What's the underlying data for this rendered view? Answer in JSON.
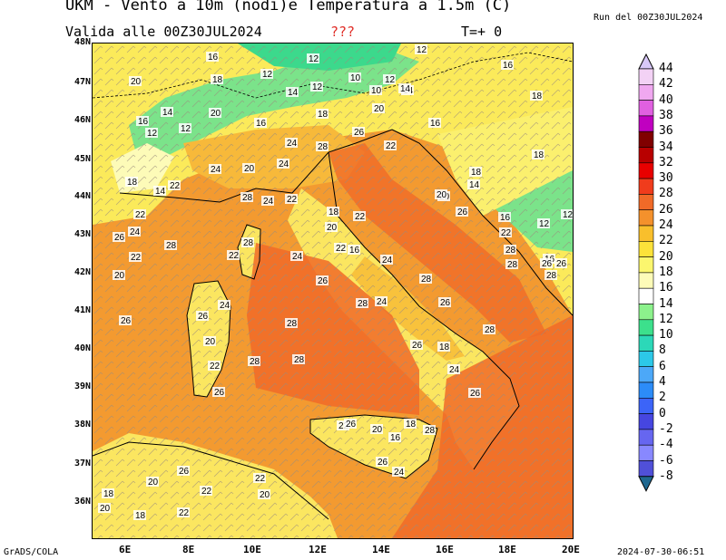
{
  "header": {
    "title": "UKM - Vento a 10m (nodi)e Temperatura a 1.5m (C)",
    "valid": "Valida alle 00Z30JUL2024",
    "unknown": "???",
    "step": "T=+ 0",
    "run": "Run del 00Z30JUL2024"
  },
  "footer": {
    "left": "GrADS/COLA",
    "right": "2024-07-30-06:51"
  },
  "axes": {
    "lat": [
      "48N",
      "47N",
      "46N",
      "45N",
      "44N",
      "43N",
      "42N",
      "41N",
      "40N",
      "39N",
      "38N",
      "37N",
      "36N"
    ],
    "lon": [
      "6E",
      "8E",
      "10E",
      "12E",
      "14E",
      "16E",
      "18E",
      "20E"
    ]
  },
  "colorbar": {
    "labels": [
      "44",
      "42",
      "40",
      "38",
      "36",
      "34",
      "32",
      "30",
      "28",
      "26",
      "24",
      "22",
      "20",
      "18",
      "16",
      "14",
      "12",
      "10",
      "8",
      "6",
      "4",
      "2",
      "0",
      "-2",
      "-4",
      "-6",
      "-8"
    ],
    "colors": [
      "#f3d2f5",
      "#f0a8f0",
      "#e060e0",
      "#c000c0",
      "#800000",
      "#b80000",
      "#e80000",
      "#f03c1c",
      "#f06a28",
      "#f4912c",
      "#f9bf2c",
      "#fce23a",
      "#fbf66e",
      "#fdfbb8",
      "#ffffff",
      "#8cf28c",
      "#3ce08c",
      "#2cd8b8",
      "#2cc8e8",
      "#4ca8f8",
      "#2c8cf8",
      "#3c64f8",
      "#4646e0",
      "#6666f0",
      "#8888ff",
      "#5050d8"
    ],
    "top_color": "#d8c8f8",
    "bottom_color": "#1f6890"
  },
  "values": {
    "v01": "16",
    "v02": "12",
    "v03": "12",
    "v04": "20",
    "v05": "18",
    "v06": "12",
    "v07": "14",
    "v08": "12",
    "v09": "10",
    "v10": "12",
    "v11": "10",
    "v12": "14",
    "v13": "16",
    "v14": "18",
    "v15": "16",
    "v16": "14",
    "v17": "12",
    "v18": "20",
    "v19": "16",
    "v20": "18",
    "v21": "20",
    "v22": "12",
    "v23": "16",
    "v24": "18",
    "v25": "24",
    "v26": "28",
    "v27": "26",
    "v28": "22",
    "v29": "18",
    "v30": "24",
    "v31": "20",
    "v32": "24",
    "v33": "18",
    "v34": "14",
    "v35": "22",
    "v36": "28",
    "v37": "24",
    "v38": "22",
    "v39": "20",
    "v40": "22",
    "v41": "26",
    "v42": "24",
    "v43": "28",
    "v44": "28",
    "v45": "22",
    "v46": "18",
    "v47": "22",
    "v48": "20",
    "v49": "22",
    "v50": "16",
    "v51": "24",
    "v52": "24",
    "v53": "26",
    "v54": "28",
    "v55": "28",
    "v56": "24",
    "v57": "28",
    "v58": "26",
    "v59": "26",
    "v60": "28",
    "v61": "28",
    "v62": "26",
    "v63": "24",
    "v64": "28",
    "v65": "26",
    "v66": "20",
    "v67": "22",
    "v68": "26",
    "v69": "28",
    "v70": "18",
    "v71": "24",
    "v72": "26",
    "v73": "28",
    "v74": "22",
    "v75": "26",
    "v76": "20",
    "v77": "16",
    "v78": "18",
    "v79": "28",
    "v80": "26",
    "v81": "24",
    "v82": "20",
    "v83": "26",
    "v84": "22",
    "v85": "22",
    "v86": "20",
    "v87": "18",
    "v88": "22",
    "v89": "20",
    "v90": "18",
    "v91": "20",
    "v92": "22",
    "v93": "14",
    "v94": "16",
    "v95": "12",
    "v96": "12",
    "v97": "16",
    "v98": "22",
    "v99": "26",
    "v100": "14",
    "v101": "20",
    "v102": "26",
    "v103": "28",
    "v104": "26"
  }
}
